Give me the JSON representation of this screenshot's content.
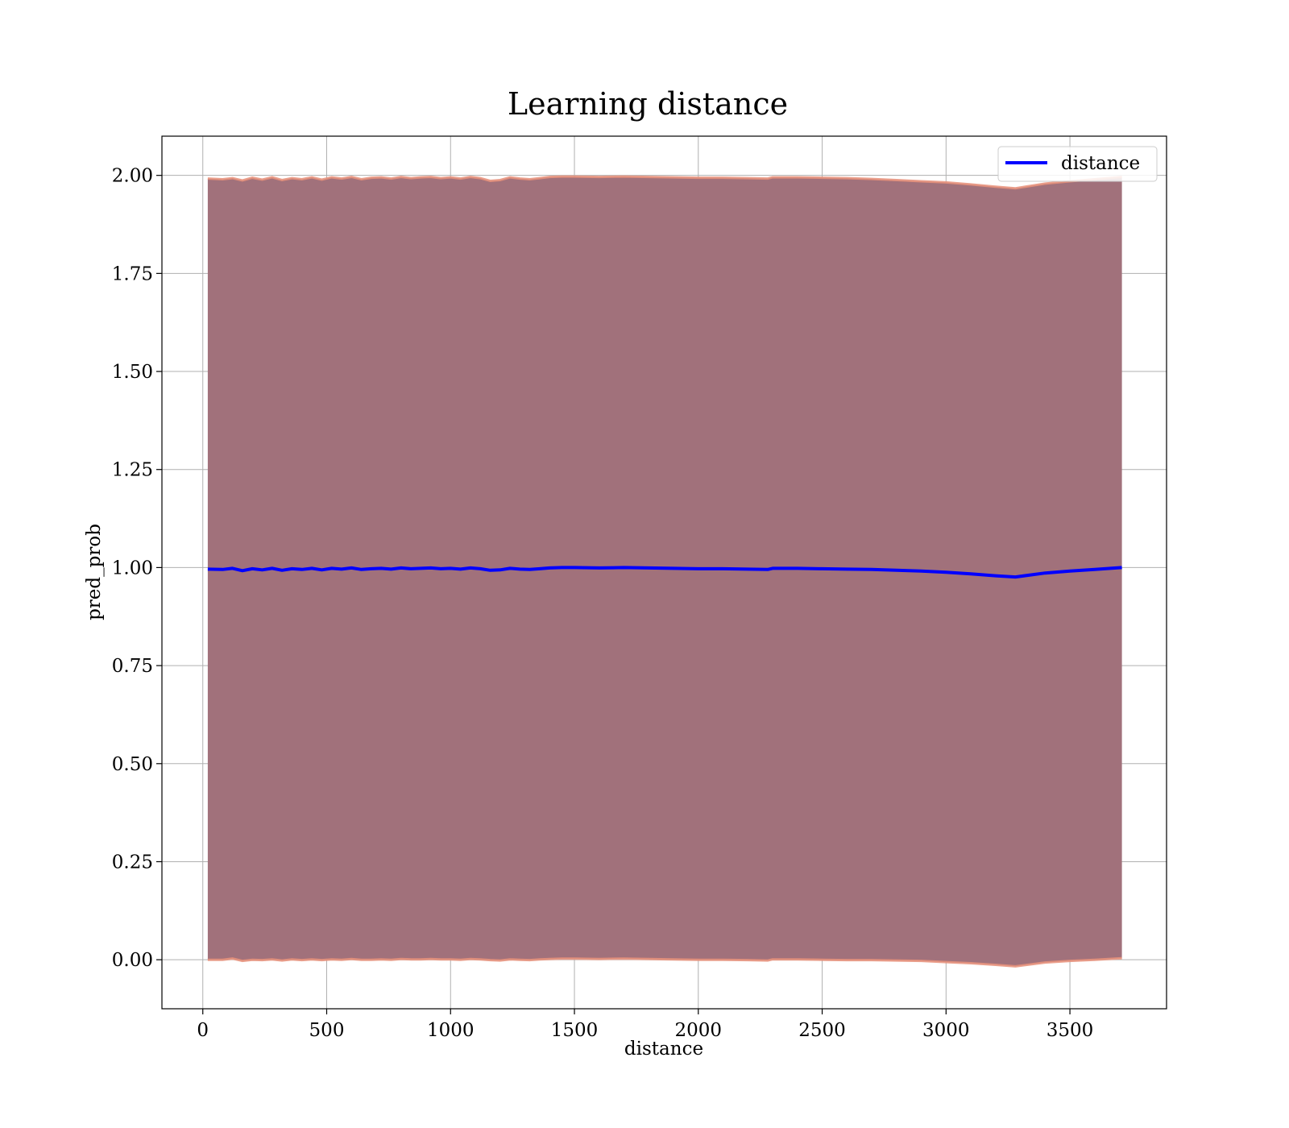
{
  "chart_data": {
    "type": "line",
    "title": "Learning distance",
    "xlabel": "distance",
    "ylabel": "pred_prob",
    "xlim": [
      -165,
      3890
    ],
    "ylim": [
      -0.125,
      2.1
    ],
    "xticks": [
      0,
      500,
      1000,
      1500,
      2000,
      2500,
      3000,
      3500
    ],
    "xtick_labels": [
      "0",
      "500",
      "1000",
      "1500",
      "2000",
      "2500",
      "3000",
      "3500"
    ],
    "yticks": [
      0.0,
      0.25,
      0.5,
      0.75,
      1.0,
      1.25,
      1.5,
      1.75,
      2.0
    ],
    "ytick_labels": [
      "0.00",
      "0.25",
      "0.50",
      "0.75",
      "1.00",
      "1.25",
      "1.50",
      "1.75",
      "2.00"
    ],
    "grid": true,
    "legend_position": "top-right",
    "series": [
      {
        "name": "distance",
        "color": "#0000ff",
        "x": [
          20,
          80,
          120,
          160,
          200,
          240,
          280,
          320,
          360,
          400,
          440,
          480,
          520,
          560,
          600,
          640,
          680,
          720,
          760,
          800,
          840,
          880,
          920,
          960,
          1000,
          1040,
          1080,
          1120,
          1160,
          1200,
          1240,
          1280,
          1320,
          1360,
          1400,
          1450,
          1500,
          1600,
          1700,
          1800,
          1900,
          2000,
          2100,
          2200,
          2280,
          2300,
          2400,
          2500,
          2600,
          2700,
          2800,
          2900,
          3000,
          3100,
          3200,
          3280,
          3400,
          3500,
          3600,
          3710
        ],
        "y": [
          0.996,
          0.995,
          0.998,
          0.992,
          0.997,
          0.994,
          0.998,
          0.993,
          0.997,
          0.995,
          0.998,
          0.994,
          0.998,
          0.996,
          0.999,
          0.995,
          0.997,
          0.998,
          0.996,
          0.999,
          0.997,
          0.998,
          0.999,
          0.997,
          0.998,
          0.996,
          0.999,
          0.997,
          0.993,
          0.994,
          0.998,
          0.996,
          0.995,
          0.997,
          0.999,
          1.0,
          1.0,
          0.999,
          1.0,
          0.999,
          0.998,
          0.997,
          0.997,
          0.996,
          0.995,
          0.998,
          0.998,
          0.997,
          0.996,
          0.995,
          0.993,
          0.991,
          0.988,
          0.984,
          0.979,
          0.976,
          0.986,
          0.991,
          0.995,
          1.0
        ]
      }
    ],
    "band": {
      "fill_color": "#a1717b",
      "edge_color": "#e8907a",
      "upper": [
        1.992,
        1.99,
        1.993,
        1.987,
        1.994,
        1.989,
        1.995,
        1.988,
        1.993,
        1.99,
        1.995,
        1.989,
        1.995,
        1.992,
        1.996,
        1.99,
        1.994,
        1.995,
        1.992,
        1.996,
        1.993,
        1.995,
        1.996,
        1.993,
        1.995,
        1.992,
        1.996,
        1.993,
        1.986,
        1.988,
        1.995,
        1.992,
        1.99,
        1.993,
        1.996,
        1.997,
        1.997,
        1.996,
        1.997,
        1.996,
        1.995,
        1.994,
        1.994,
        1.993,
        1.992,
        1.995,
        1.995,
        1.994,
        1.993,
        1.991,
        1.988,
        1.985,
        1.982,
        1.977,
        1.971,
        1.967,
        1.979,
        1.985,
        1.99,
        1.996
      ],
      "lower": [
        0.0,
        0.0,
        0.003,
        -0.003,
        0.0,
        -0.001,
        0.001,
        -0.002,
        0.001,
        -0.001,
        0.001,
        -0.001,
        0.001,
        0.0,
        0.002,
        0.0,
        0.0,
        0.001,
        0.0,
        0.002,
        0.001,
        0.001,
        0.002,
        0.001,
        0.001,
        0.0,
        0.002,
        0.001,
        -0.001,
        -0.002,
        0.001,
        0.0,
        -0.001,
        0.001,
        0.002,
        0.003,
        0.003,
        0.002,
        0.003,
        0.002,
        0.001,
        0.0,
        0.0,
        -0.001,
        -0.002,
        0.001,
        0.001,
        0.0,
        -0.001,
        -0.001,
        -0.002,
        -0.003,
        -0.006,
        -0.009,
        -0.013,
        -0.017,
        -0.007,
        -0.003,
        0.0,
        0.004
      ]
    }
  }
}
